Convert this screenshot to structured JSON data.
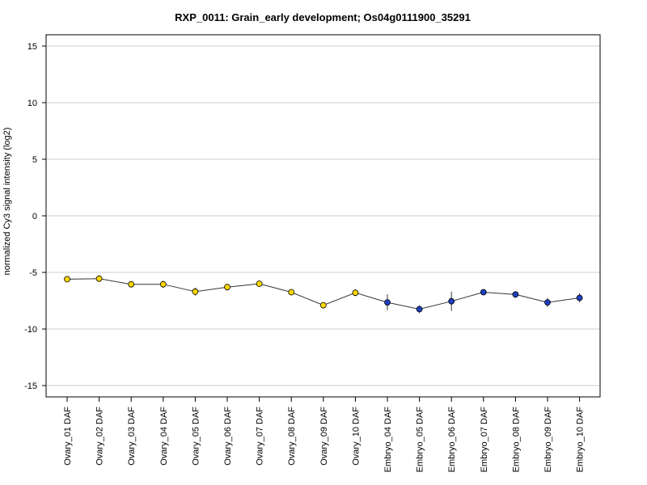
{
  "chart_data": {
    "type": "line",
    "title": "RXP_0011: Grain_early development; Os04g0111900_35291",
    "xlabel": "",
    "ylabel": "normalized Cy3 signal intensity (log2)",
    "ylim": [
      -16,
      16
    ],
    "yticks": [
      -15,
      -10,
      -5,
      0,
      5,
      10,
      15
    ],
    "grid": true,
    "categories": [
      "Ovary_01 DAF",
      "Ovary_02 DAF",
      "Ovary_03 DAF",
      "Ovary_04 DAF",
      "Ovary_05 DAF",
      "Ovary_06 DAF",
      "Ovary_07 DAF",
      "Ovary_08 DAF",
      "Ovary_09 DAF",
      "Ovary_10 DAF",
      "Embryo_04 DAF",
      "Embryo_05 DAF",
      "Embryo_06 DAF",
      "Embryo_07 DAF",
      "Embryo_08 DAF",
      "Embryo_09 DAF",
      "Embryo_10 DAF"
    ],
    "values": [
      -5.6,
      -5.55,
      -6.05,
      -6.05,
      -6.7,
      -6.3,
      -6.0,
      -6.75,
      -7.9,
      -6.8,
      -7.65,
      -8.25,
      -7.55,
      -6.75,
      -6.95,
      -7.65,
      -7.25
    ],
    "error": [
      0.2,
      0.15,
      0.15,
      0.3,
      0.35,
      0.25,
      0.2,
      0.2,
      0.2,
      0.3,
      0.7,
      0.35,
      0.85,
      0.15,
      0.2,
      0.4,
      0.4
    ],
    "point_colors": [
      "#FFD700",
      "#FFD700",
      "#FFD700",
      "#FFD700",
      "#FFD700",
      "#FFD700",
      "#FFD700",
      "#FFD700",
      "#FFD700",
      "#FFD700",
      "#1f3fbf",
      "#1f3fbf",
      "#1f3fbf",
      "#1f3fbf",
      "#1f3fbf",
      "#1f3fbf",
      "#1f3fbf"
    ],
    "colors": {
      "line": "#333333",
      "grid": "#cccccc",
      "frame": "#000000"
    }
  }
}
